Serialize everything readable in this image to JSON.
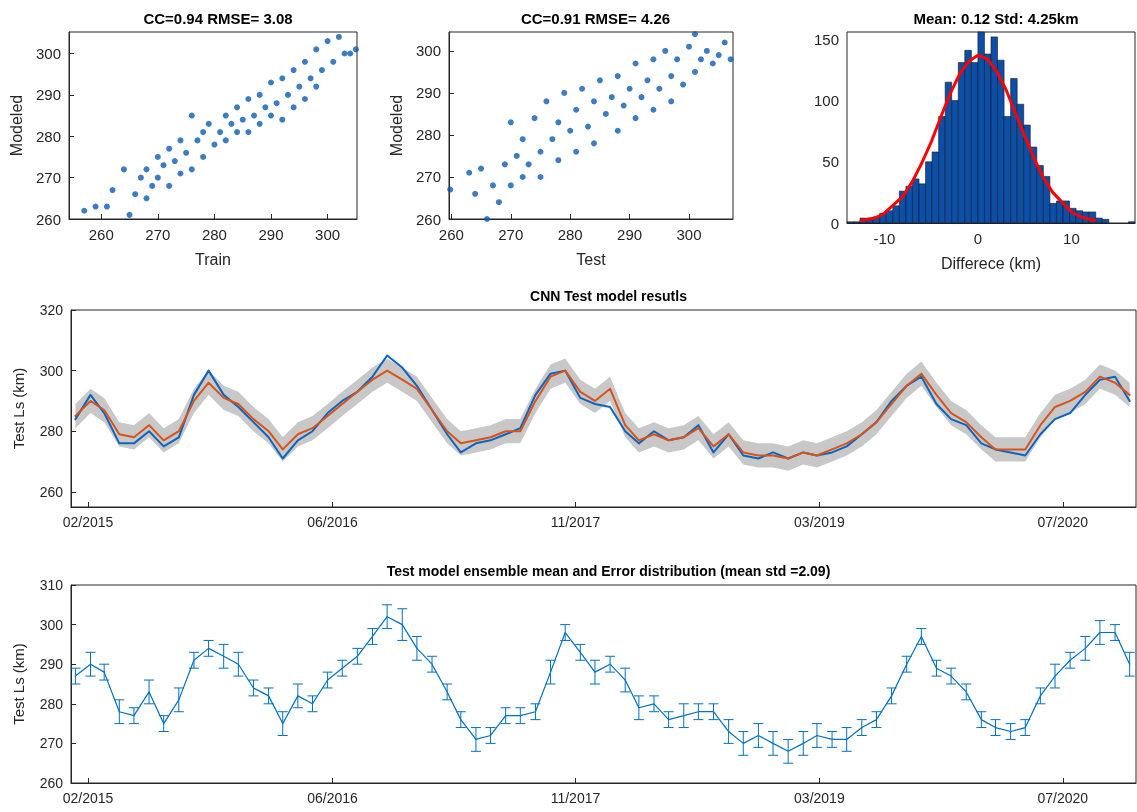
{
  "chart_data": [
    {
      "type": "scatter",
      "title": "CC=0.94 RMSE= 3.08",
      "xlabel": "Train",
      "ylabel": "Modeled",
      "color": "#0a5bb5",
      "marker": "circle",
      "x": [
        257,
        259,
        261,
        262,
        264,
        265,
        266,
        267,
        268,
        268,
        269,
        270,
        270,
        271,
        272,
        272,
        273,
        274,
        274,
        275,
        276,
        276,
        277,
        278,
        278,
        279,
        280,
        281,
        282,
        282,
        283,
        284,
        284,
        285,
        286,
        286,
        287,
        288,
        288,
        289,
        290,
        290,
        291,
        292,
        292,
        293,
        294,
        294,
        295,
        296,
        296,
        297,
        298,
        298,
        299,
        300,
        301,
        302,
        303,
        304,
        305
      ],
      "values": [
        262,
        263,
        263,
        267,
        272,
        261,
        266,
        270,
        265,
        272,
        268,
        275,
        270,
        273,
        277,
        268,
        274,
        279,
        271,
        276,
        285,
        272,
        279,
        281,
        275,
        283,
        278,
        281,
        285,
        279,
        283,
        287,
        281,
        284,
        289,
        281,
        285,
        290,
        283,
        287,
        293,
        285,
        288,
        294,
        284,
        290,
        296,
        287,
        292,
        298,
        289,
        294,
        301,
        292,
        296,
        303,
        298,
        304,
        300,
        300,
        301
      ],
      "xlim": [
        254.3,
        305.2
      ],
      "ylim": [
        260,
        305.2
      ],
      "xticks": [
        260,
        270,
        280,
        290,
        300
      ],
      "yticks": [
        260,
        270,
        280,
        290,
        300
      ]
    },
    {
      "type": "scatter",
      "title": "CC=0.91 RMSE= 4.26",
      "xlabel": "Test",
      "ylabel": "Modeled",
      "color": "#0a5bb5",
      "marker": "circle",
      "x": [
        259.8,
        263,
        264,
        265,
        266,
        267,
        268,
        269,
        270,
        270,
        271,
        272,
        272,
        273,
        274,
        275,
        275,
        276,
        277,
        278,
        278,
        279,
        280,
        281,
        281,
        282,
        283,
        284,
        284,
        285,
        286,
        287,
        288,
        288,
        289,
        290,
        291,
        291,
        292,
        293,
        294,
        294,
        295,
        296,
        297,
        297,
        298,
        299,
        300,
        301,
        301,
        302,
        303,
        304,
        305,
        306,
        307
      ],
      "values": [
        267,
        271,
        266,
        272,
        260,
        268,
        264,
        273,
        268,
        283,
        275,
        270,
        279,
        273,
        284,
        276,
        270,
        288,
        279,
        274,
        283,
        290,
        281,
        276,
        286,
        291,
        282,
        288,
        278,
        293,
        285,
        289,
        281,
        294,
        287,
        291,
        284,
        297,
        289,
        293,
        298,
        286,
        291,
        300,
        294,
        288,
        298,
        292,
        301,
        304,
        295,
        298,
        300,
        297,
        299,
        302,
        298
      ],
      "xlim": [
        259.6,
        307.4
      ],
      "ylim": [
        260,
        304.5
      ],
      "xticks": [
        260,
        270,
        280,
        290,
        300
      ],
      "yticks": [
        260,
        270,
        280,
        290,
        300
      ]
    },
    {
      "type": "histogram",
      "title": "Mean: 0.12 Std: 4.25km",
      "xlabel": "Differece (km)",
      "bins": [
        -14,
        -13.3,
        -12.6,
        -11.9,
        -11.2,
        -10.5,
        -9.8,
        -9.1,
        -8.4,
        -7.7,
        -7,
        -6.3,
        -5.6,
        -4.9,
        -4.2,
        -3.5,
        -2.8,
        -2.1,
        -1.4,
        -0.7,
        0,
        0.7,
        1.4,
        2.1,
        2.8,
        3.5,
        4.2,
        4.9,
        5.6,
        6.3,
        7,
        7.7,
        8.4,
        9.1,
        9.8,
        10.5,
        11.2,
        11.9,
        12.6,
        13.3,
        14,
        14.7,
        15.4,
        16.1,
        16.8
      ],
      "series": [
        {
          "type": "histogram",
          "color": "#0b4fa8",
          "values": [
            1,
            1,
            4,
            4,
            5,
            8,
            10,
            14,
            26,
            30,
            36,
            32,
            50,
            58,
            87,
            115,
            100,
            131,
            141,
            131,
            156,
            138,
            152,
            133,
            87,
            118,
            97,
            80,
            62,
            47,
            38,
            16,
            18,
            18,
            12,
            10,
            9,
            9,
            4,
            3,
            0,
            0,
            0,
            1
          ]
        },
        {
          "type": "line",
          "color": "#ff0000",
          "x": [
            -12.5,
            -11,
            -10,
            -8,
            -7,
            -6,
            -5,
            -4,
            -3,
            -2,
            -1,
            0,
            1,
            2,
            3,
            4,
            5,
            6,
            7,
            8,
            10,
            11,
            12.5
          ],
          "values": [
            2,
            4,
            8,
            22,
            34,
            49,
            66,
            86,
            105,
            121,
            132,
            137,
            134,
            124,
            109,
            90,
            71,
            53,
            37,
            25,
            9,
            5,
            2
          ]
        }
      ],
      "xlim": [
        -14,
        16.8
      ],
      "ylim": [
        0,
        156
      ],
      "xticks": [
        -10,
        0,
        10
      ],
      "yticks": [
        0,
        50,
        100,
        150
      ]
    },
    {
      "type": "line",
      "title": "CNN Test model resutls",
      "ylabel": "Test Ls (km)",
      "x": [
        "2015-01-15",
        "2015-02-15",
        "2015-03-15",
        "2015-04-15",
        "2015-05-15",
        "2015-06-15",
        "2015-07-15",
        "2015-08-15",
        "2015-09-15",
        "2015-10-15",
        "2015-11-15",
        "2015-12-15",
        "2016-01-15",
        "2016-02-15",
        "2016-03-15",
        "2016-04-15",
        "2016-05-15",
        "2016-06-15",
        "2016-07-15",
        "2016-08-15",
        "2016-09-15",
        "2016-10-15",
        "2016-11-15",
        "2016-12-15",
        "2017-01-15",
        "2017-02-15",
        "2017-03-15",
        "2017-04-15",
        "2017-05-15",
        "2017-06-15",
        "2017-07-15",
        "2017-08-15",
        "2017-09-15",
        "2017-10-15",
        "2017-11-15",
        "2017-12-15",
        "2018-01-15",
        "2018-02-15",
        "2018-03-15",
        "2018-04-15",
        "2018-05-15",
        "2018-06-15",
        "2018-07-15",
        "2018-08-15",
        "2018-09-15",
        "2018-10-15",
        "2018-11-15",
        "2018-12-15",
        "2019-01-15",
        "2019-02-15",
        "2019-03-15",
        "2019-04-15",
        "2019-05-15",
        "2019-06-15",
        "2019-07-15",
        "2019-08-15",
        "2019-09-15",
        "2019-10-15",
        "2019-11-15",
        "2019-12-15",
        "2020-01-15",
        "2020-02-15",
        "2020-03-15",
        "2020-04-15",
        "2020-05-15",
        "2020-06-15",
        "2020-07-15",
        "2020-08-15",
        "2020-09-15",
        "2020-10-15",
        "2020-11-15",
        "2020-12-15"
      ],
      "series": [
        {
          "color": "#0b64c0",
          "values": [
            284,
            292,
            286,
            276,
            276,
            280,
            275,
            278,
            292,
            300,
            292,
            288,
            283,
            278,
            271,
            277,
            280,
            286,
            290,
            293,
            298,
            305,
            301,
            295,
            287,
            279,
            273,
            276,
            277,
            279,
            281,
            292,
            299,
            300,
            291,
            289,
            288,
            280,
            276,
            280,
            277,
            278,
            282,
            273,
            279,
            272,
            271,
            273,
            271,
            273,
            272,
            273,
            275,
            279,
            283,
            290,
            295,
            298,
            289,
            284,
            282,
            276,
            274,
            273,
            272,
            279,
            284,
            286,
            292,
            297,
            298,
            290
          ]
        },
        {
          "color": "#d95319",
          "values": [
            285,
            290,
            287,
            279,
            278,
            282,
            277,
            280,
            290,
            296,
            291,
            289,
            284,
            280,
            274,
            279,
            281,
            285,
            289,
            293,
            297,
            300,
            297,
            294,
            287,
            280,
            276,
            277,
            278,
            280,
            280,
            290,
            298,
            300,
            293,
            290,
            294,
            282,
            277,
            279,
            277,
            278,
            281,
            275,
            279,
            273,
            272,
            272,
            271,
            273,
            272,
            274,
            276,
            279,
            283,
            289,
            295,
            299,
            292,
            286,
            283,
            278,
            274,
            274,
            274,
            282,
            288,
            290,
            293,
            298,
            296,
            292
          ],
          "lower": [
            281,
            286,
            283,
            275,
            274,
            278,
            273,
            276,
            286,
            292,
            287,
            285,
            280,
            276,
            270,
            275,
            277,
            281,
            285,
            289,
            293,
            296,
            293,
            290,
            283,
            276,
            272,
            273,
            274,
            276,
            276,
            286,
            294,
            296,
            289,
            286,
            290,
            278,
            273,
            275,
            273,
            274,
            277,
            271,
            275,
            269,
            268,
            268,
            267,
            269,
            268,
            270,
            272,
            275,
            279,
            285,
            291,
            295,
            288,
            282,
            279,
            274,
            270,
            270,
            270,
            278,
            284,
            286,
            289,
            294,
            292,
            288
          ],
          "upper": [
            289,
            294,
            291,
            283,
            282,
            286,
            281,
            284,
            294,
            300,
            295,
            293,
            288,
            284,
            278,
            283,
            285,
            289,
            293,
            297,
            301,
            304,
            301,
            298,
            291,
            284,
            280,
            281,
            282,
            284,
            284,
            294,
            302,
            304,
            297,
            294,
            298,
            286,
            281,
            283,
            281,
            282,
            285,
            279,
            283,
            277,
            276,
            276,
            275,
            277,
            276,
            278,
            280,
            283,
            287,
            293,
            299,
            303,
            296,
            290,
            287,
            282,
            278,
            278,
            278,
            286,
            292,
            294,
            297,
            302,
            300,
            296
          ]
        }
      ],
      "xlim": [
        "2015-01-06",
        "2020-12-28"
      ],
      "ylim": [
        255,
        320
      ],
      "yticks": [
        260,
        280,
        300,
        320
      ],
      "xticks": [
        {
          "value": "2015-02-10",
          "label": "02/2015"
        },
        {
          "value": "2016-06-25",
          "label": "06/2016"
        },
        {
          "value": "2017-11-05",
          "label": "11/2017"
        },
        {
          "value": "2019-03-20",
          "label": "03/2019"
        },
        {
          "value": "2020-07-31",
          "label": "07/2020"
        }
      ]
    },
    {
      "type": "line",
      "title": "Test model ensemble mean and Error distribution (mean std =2.09)",
      "ylabel": "Test Ls (km)",
      "x": [
        "2015-01-15",
        "2015-02-15",
        "2015-03-15",
        "2015-04-15",
        "2015-05-15",
        "2015-06-15",
        "2015-07-15",
        "2015-08-15",
        "2015-09-15",
        "2015-10-15",
        "2015-11-15",
        "2015-12-15",
        "2016-01-15",
        "2016-02-15",
        "2016-03-15",
        "2016-04-15",
        "2016-05-15",
        "2016-06-15",
        "2016-07-15",
        "2016-08-15",
        "2016-09-15",
        "2016-10-15",
        "2016-11-15",
        "2016-12-15",
        "2017-01-15",
        "2017-02-15",
        "2017-03-15",
        "2017-04-15",
        "2017-05-15",
        "2017-06-15",
        "2017-07-15",
        "2017-08-15",
        "2017-09-15",
        "2017-10-15",
        "2017-11-15",
        "2017-12-15",
        "2018-01-15",
        "2018-02-15",
        "2018-03-15",
        "2018-04-15",
        "2018-05-15",
        "2018-06-15",
        "2018-07-15",
        "2018-08-15",
        "2018-09-15",
        "2018-10-15",
        "2018-11-15",
        "2018-12-15",
        "2019-01-15",
        "2019-02-15",
        "2019-03-15",
        "2019-04-15",
        "2019-05-15",
        "2019-06-15",
        "2019-07-15",
        "2019-08-15",
        "2019-09-15",
        "2019-10-15",
        "2019-11-15",
        "2019-12-15",
        "2020-01-15",
        "2020-02-15",
        "2020-03-15",
        "2020-04-15",
        "2020-05-15",
        "2020-06-15",
        "2020-07-15",
        "2020-08-15",
        "2020-09-15",
        "2020-10-15",
        "2020-11-15",
        "2020-12-15"
      ],
      "series": [
        {
          "color": "#0072bd",
          "values": [
            287,
            290,
            288,
            278,
            277,
            283,
            275,
            281,
            291,
            294,
            292,
            290,
            284,
            282,
            275,
            282,
            280,
            286,
            289,
            292,
            297,
            302,
            300,
            294,
            290,
            283,
            276,
            271,
            272,
            277,
            277,
            278,
            288,
            298,
            293,
            288,
            290,
            286,
            279,
            280,
            276,
            277,
            278,
            278,
            273,
            270,
            272,
            270,
            268,
            270,
            272,
            271,
            271,
            274,
            276,
            282,
            290,
            297,
            289,
            287,
            283,
            276,
            274,
            273,
            274,
            282,
            287,
            291,
            294,
            298,
            298,
            290
          ],
          "errors": [
            2,
            3,
            2,
            3,
            2,
            3,
            2,
            3,
            2,
            2,
            3,
            3,
            2,
            2,
            3,
            3,
            2,
            2,
            2,
            2,
            2,
            3,
            4,
            3,
            2,
            2,
            2,
            3,
            2,
            2,
            2,
            2,
            3,
            2,
            2,
            3,
            2,
            3,
            3,
            2,
            2,
            3,
            2,
            2,
            3,
            3,
            3,
            3,
            3,
            3,
            3,
            2,
            3,
            2,
            2,
            2,
            2,
            2,
            2,
            2,
            2,
            2,
            2,
            2,
            2,
            2,
            3,
            2,
            3,
            3,
            2,
            3
          ]
        }
      ],
      "xlim": [
        "2015-01-06",
        "2020-12-28"
      ],
      "ylim": [
        260,
        310
      ],
      "yticks": [
        260,
        270,
        280,
        290,
        300,
        310
      ],
      "xticks": [
        {
          "value": "2015-02-10",
          "label": "02/2015"
        },
        {
          "value": "2016-06-25",
          "label": "06/2016"
        },
        {
          "value": "2017-11-05",
          "label": "11/2017"
        },
        {
          "value": "2019-03-20",
          "label": "03/2019"
        },
        {
          "value": "2020-07-31",
          "label": "07/2020"
        }
      ]
    }
  ]
}
